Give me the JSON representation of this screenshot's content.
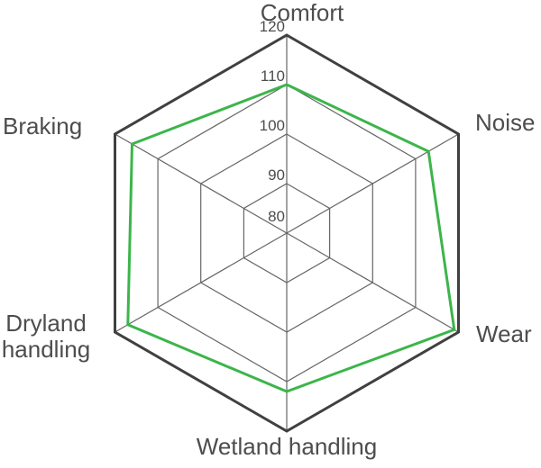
{
  "chart_data": {
    "type": "radar",
    "title": "",
    "categories": [
      "Comfort",
      "Noise",
      "Wear",
      "Wetland handling",
      "Dryland handling",
      "Braking"
    ],
    "series": [
      {
        "values": [
          110,
          113,
          119,
          112,
          117,
          116
        ],
        "color": "#3cb54a"
      }
    ],
    "axis": {
      "min": 80,
      "max": 120,
      "tick_step": 10,
      "ticks": [
        "120",
        "110",
        "100",
        "90",
        "80"
      ]
    },
    "grid": {
      "shape": "hexagon",
      "rings": [
        90,
        100,
        110,
        120
      ],
      "spokes": 6,
      "inner_color": "#666666",
      "outer_color": "#404040"
    },
    "legend": "none",
    "text_color": "#4d4d4d"
  }
}
